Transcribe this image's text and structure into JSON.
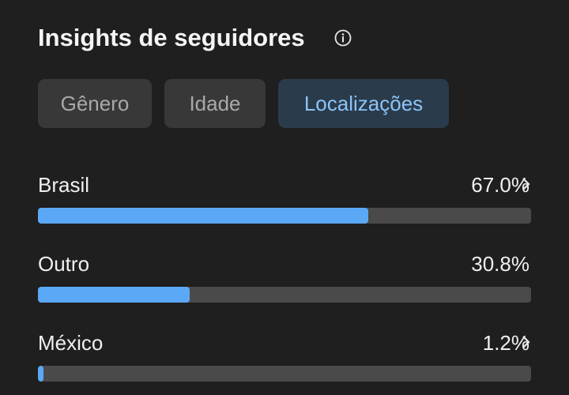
{
  "header": {
    "title": "Insights de seguidores"
  },
  "tabs": {
    "items": [
      "Gênero",
      "Idade",
      "Localizações"
    ],
    "active": 2
  },
  "locations": {
    "names": [
      "Brasil",
      "Outro",
      "México"
    ],
    "values": [
      67.0,
      30.8,
      1.2
    ],
    "value_labels": [
      "67.0%",
      "30.8%",
      "1.2%"
    ],
    "xlim": [
      0,
      100
    ],
    "color": "#5ba9f6"
  }
}
